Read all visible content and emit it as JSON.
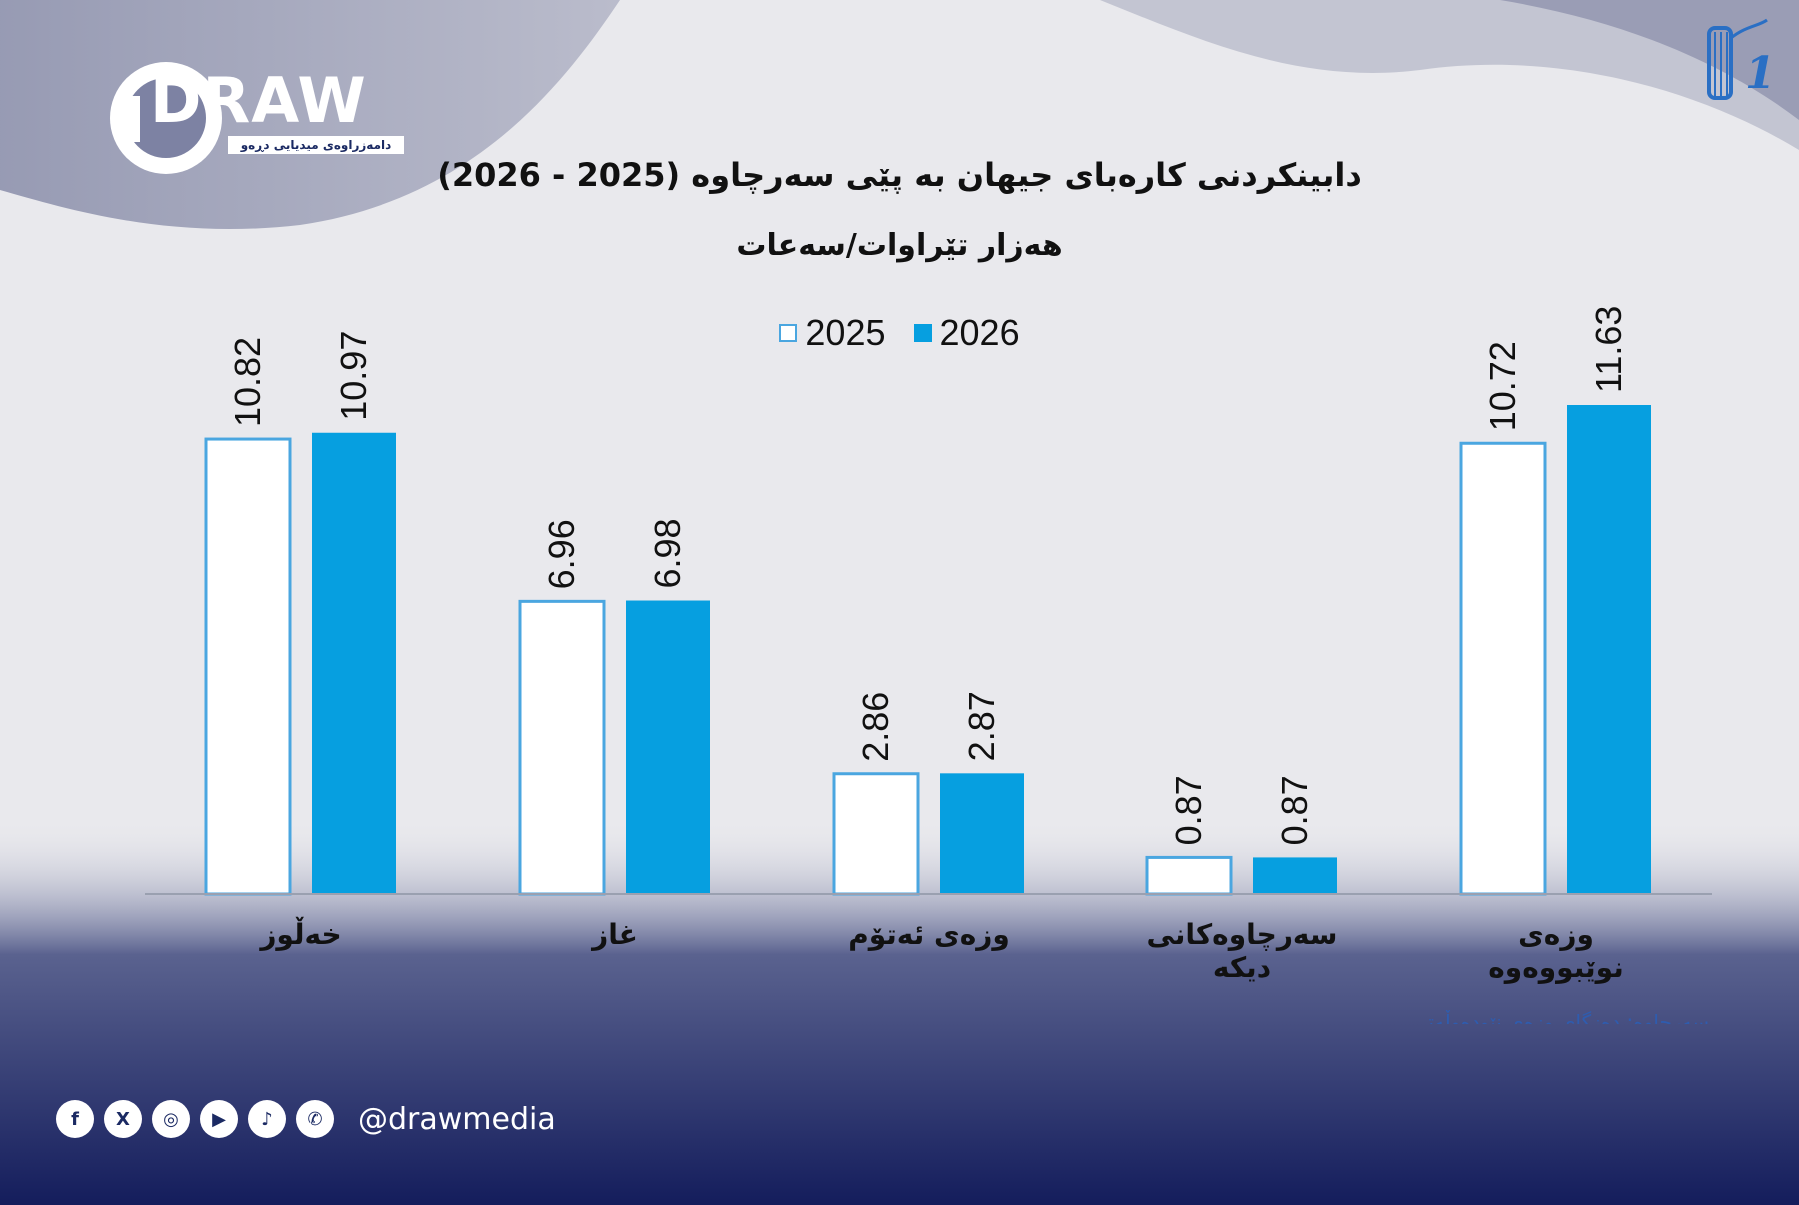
{
  "branding": {
    "logo_text": "DRAW",
    "logo_subtitle": "دامەزراوەی میدیایی دڕەو",
    "handle": "@drawmedia",
    "socials": [
      {
        "icon": "facebook-icon",
        "glyph": "f"
      },
      {
        "icon": "x-icon",
        "glyph": "X"
      },
      {
        "icon": "instagram-icon",
        "glyph": "◎"
      },
      {
        "icon": "youtube-icon",
        "glyph": "▶"
      },
      {
        "icon": "tiktok-icon",
        "glyph": "♪"
      },
      {
        "icon": "whatsapp-icon",
        "glyph": "✆"
      }
    ],
    "corner_logo_text": "1"
  },
  "colors": {
    "series_2025_fill": "#ffffff",
    "series_2025_border": "#4aa6e0",
    "series_2026_fill": "#069fe0",
    "footer_navy": "#141d5c"
  },
  "chart_data": {
    "type": "bar",
    "title": "دابینکردنی کارەبای جیهان بە پێی سەرچاوە (2025 - 2026)",
    "subtitle": "هەزار تێراوات/سەعات",
    "categories": [
      "خەڵوز",
      "غاز",
      "وزەی ئەتۆم",
      "سەرچاوەکانی دیکە",
      "وزەی نوێبووەوە"
    ],
    "series": [
      {
        "name": "2025",
        "values": [
          10.82,
          6.96,
          2.86,
          0.87,
          10.72
        ]
      },
      {
        "name": "2026",
        "values": [
          10.97,
          6.98,
          2.87,
          0.87,
          11.63
        ]
      }
    ],
    "value_labels_2025": [
      "10.82",
      "6.96",
      "2.86",
      "0.87",
      "10.72"
    ],
    "value_labels_2026": [
      "10.97",
      "6.98",
      "2.87",
      "0.87",
      "11.63"
    ],
    "ylim": [
      0,
      11.63
    ],
    "grid": false,
    "legend": "top-center",
    "source_note": "سەرچاوە: دەزگای وزەی نێودەوڵەتی"
  }
}
